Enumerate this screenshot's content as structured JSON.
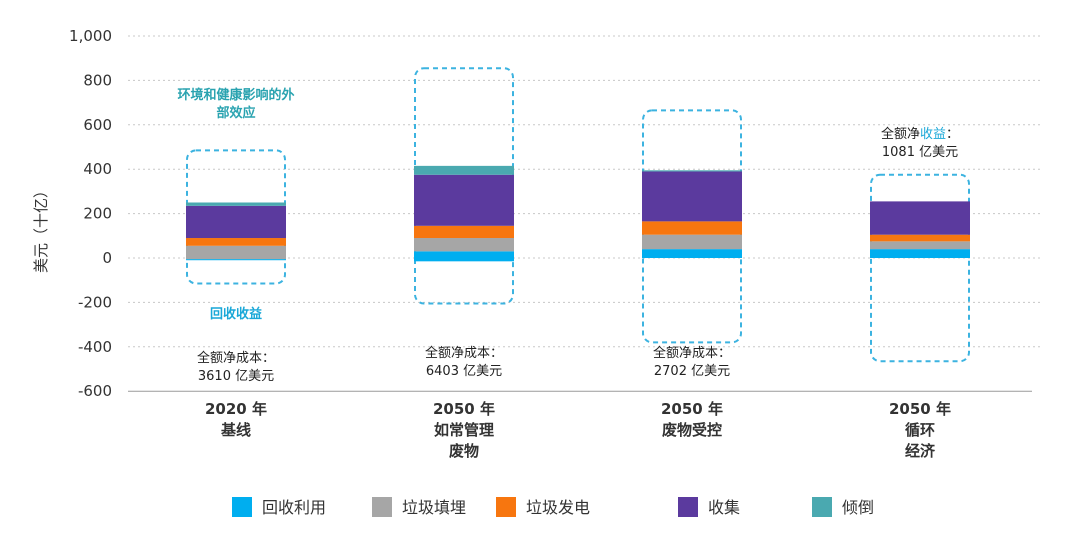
{
  "chart_data": {
    "type": "bar",
    "stacked": true,
    "ylabel": "美元（十亿）",
    "ylim": [
      -600,
      1000
    ],
    "yticks": [
      1000,
      800,
      600,
      400,
      200,
      0,
      -200,
      -400,
      -600
    ],
    "ytick_labels": [
      "1,000",
      "800",
      "600",
      "400",
      "200",
      "0",
      "-200",
      "-400",
      "-600"
    ],
    "grid": "horizontal-dotted",
    "legend_position": "bottom",
    "colors": {
      "recycling": "#00aeef",
      "landfill": "#a6a6a6",
      "energy": "#f7760f",
      "collection": "#5b3a9e",
      "dumping": "#4aa9b0",
      "dashed_box": "#3cb3e0"
    },
    "categories": [
      {
        "lines": [
          "2020 年",
          "基线"
        ]
      },
      {
        "lines": [
          "2050 年",
          "如常管理",
          "废物"
        ]
      },
      {
        "lines": [
          "2050 年",
          "废物受控"
        ]
      },
      {
        "lines": [
          "2050 年",
          "循环",
          "经济"
        ]
      }
    ],
    "series": [
      {
        "key": "recycling",
        "name": "回收利用",
        "values": [
          5,
          45,
          40,
          40
        ]
      },
      {
        "key": "landfill",
        "name": "垃圾填埋",
        "values": [
          60,
          60,
          65,
          35
        ]
      },
      {
        "key": "energy",
        "name": "垃圾发电",
        "values": [
          35,
          55,
          60,
          30
        ]
      },
      {
        "key": "collection",
        "name": "收集",
        "values": [
          145,
          230,
          225,
          150
        ]
      },
      {
        "key": "dumping",
        "name": "倾倒",
        "values": [
          15,
          40,
          5,
          0
        ]
      }
    ],
    "negative_offsets": [
      -10,
      -15,
      0,
      0
    ],
    "externality_ranges": [
      [
        -115,
        485
      ],
      [
        -205,
        855
      ],
      [
        -380,
        665
      ],
      [
        -465,
        375
      ]
    ],
    "annotations": {
      "externalities_label": [
        "环境和健康影响的外",
        "部效应"
      ],
      "recycling_revenue_label": "回收收益",
      "net_cost_2020": [
        "全额净成本：",
        "3610 亿美元"
      ],
      "net_cost_bau": [
        "全额净成本：",
        "6403 亿美元"
      ],
      "net_cost_managed": [
        "全额净成本：",
        "2702 亿美元"
      ],
      "net_benefit_prefix": "全额净",
      "net_benefit_word": "收益",
      "net_benefit_suffix": "：",
      "net_benefit_value": "1081 亿美元"
    }
  }
}
